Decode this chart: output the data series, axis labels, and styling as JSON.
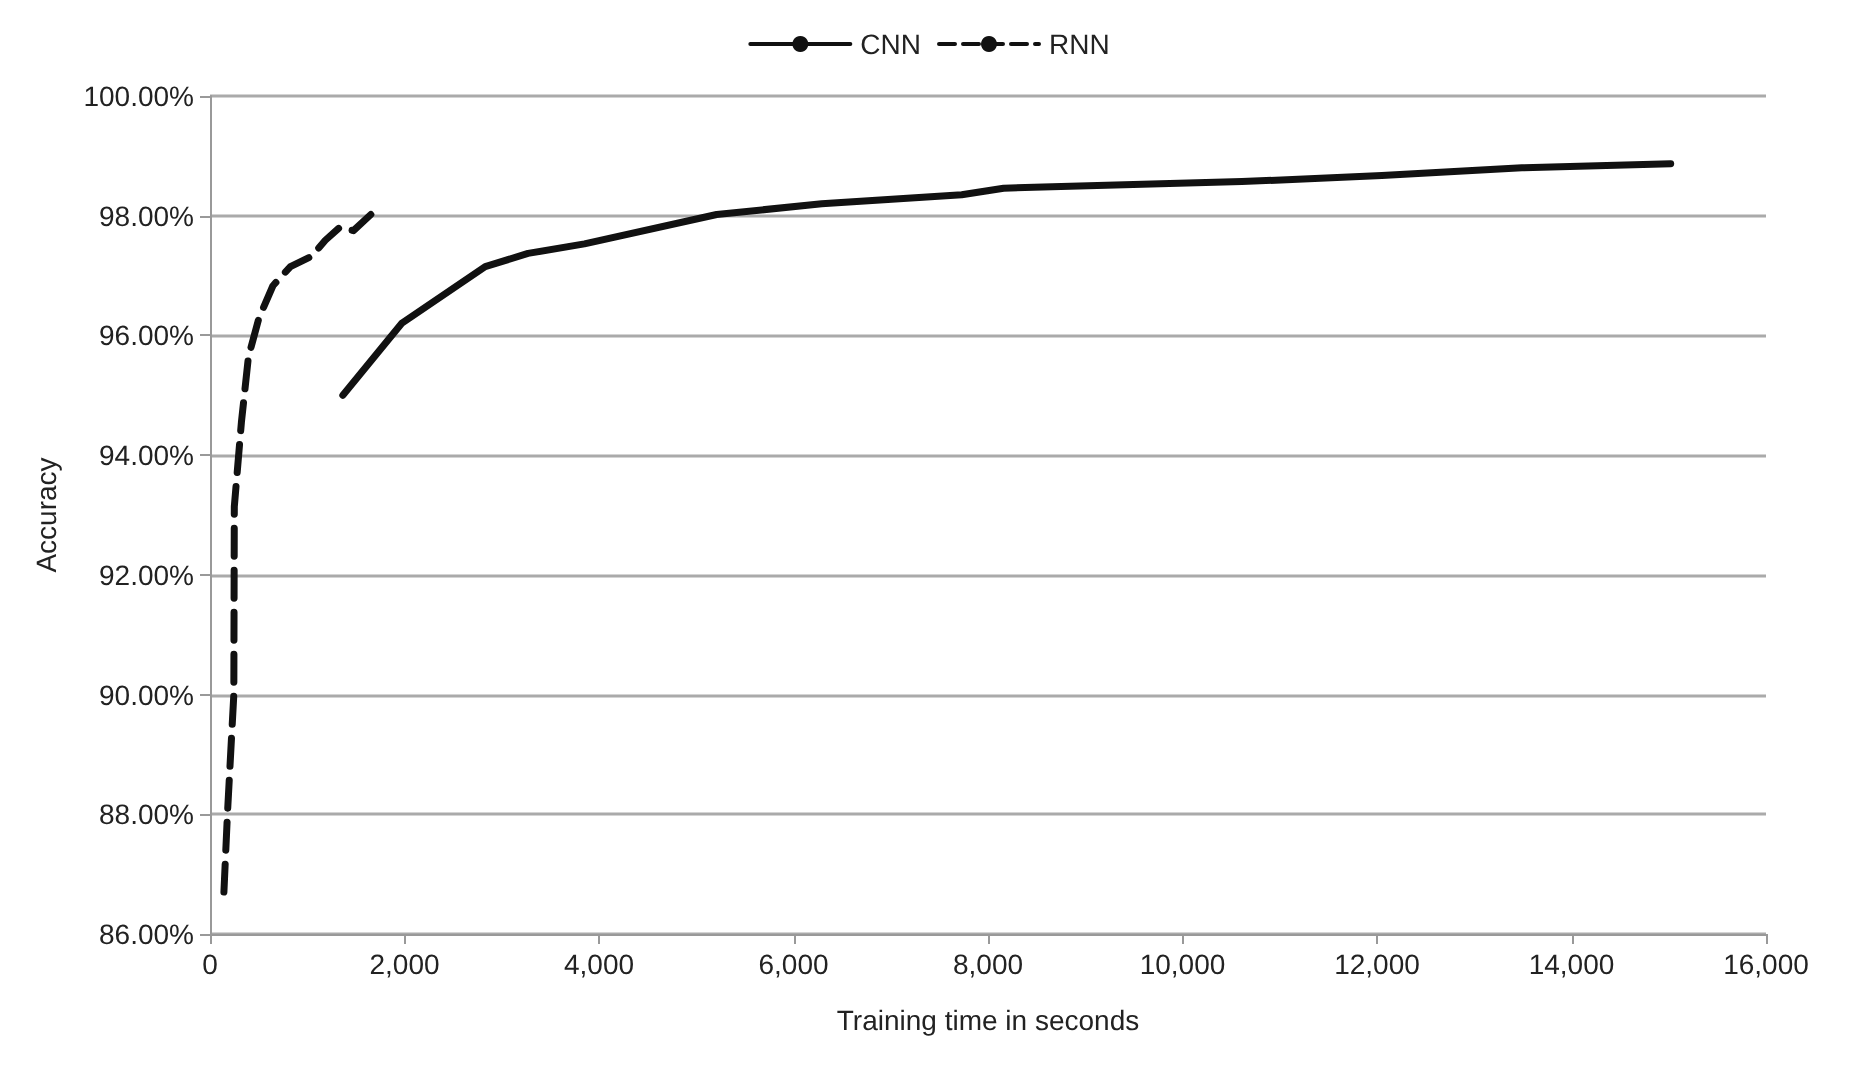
{
  "chart_data": {
    "type": "line",
    "xlabel": "Training time in seconds",
    "ylabel": "Accuracy",
    "xlim": [
      0,
      16000
    ],
    "xticks": [
      {
        "value": 0,
        "label": "0"
      },
      {
        "value": 2000,
        "label": "2,000"
      },
      {
        "value": 4000,
        "label": "4,000"
      },
      {
        "value": 6000,
        "label": "6,000"
      },
      {
        "value": 8000,
        "label": "8,000"
      },
      {
        "value": 10000,
        "label": "10,000"
      },
      {
        "value": 12000,
        "label": "12,000"
      },
      {
        "value": 14000,
        "label": "14,000"
      },
      {
        "value": 16000,
        "label": "16,000"
      }
    ],
    "ylim": [
      86,
      100
    ],
    "yticks": [
      {
        "value": 86,
        "label": "86.00%"
      },
      {
        "value": 88,
        "label": "88.00%"
      },
      {
        "value": 90,
        "label": "90.00%"
      },
      {
        "value": 92,
        "label": "92.00%"
      },
      {
        "value": 94,
        "label": "94.00%"
      },
      {
        "value": 96,
        "label": "96.00%"
      },
      {
        "value": 98,
        "label": "98.00%"
      },
      {
        "value": 100,
        "label": "100.00%"
      }
    ],
    "grid": "y",
    "legend": "top",
    "marker": "none",
    "series": [
      {
        "name": "CNN",
        "color": "#111111",
        "line_style": "solid",
        "x": [
          1366,
          1970,
          2830,
          3270,
          3850,
          5210,
          6290,
          7730,
          8160,
          10610,
          12050,
          13490,
          15020
        ],
        "values": [
          95.0,
          96.2,
          97.15,
          97.37,
          97.53,
          98.02,
          98.2,
          98.35,
          98.46,
          98.57,
          98.67,
          98.8,
          98.87
        ]
      },
      {
        "name": "RNN",
        "color": "#111111",
        "line_style": "dashed",
        "x": [
          143,
          180,
          245,
          250,
          323,
          395,
          503,
          647,
          827,
          1043,
          1186,
          1330,
          1475,
          1654
        ],
        "values": [
          86.7,
          88.03,
          90.0,
          93.14,
          94.55,
          95.64,
          96.29,
          96.83,
          97.15,
          97.32,
          97.59,
          97.8,
          97.75,
          98.02
        ]
      }
    ]
  }
}
